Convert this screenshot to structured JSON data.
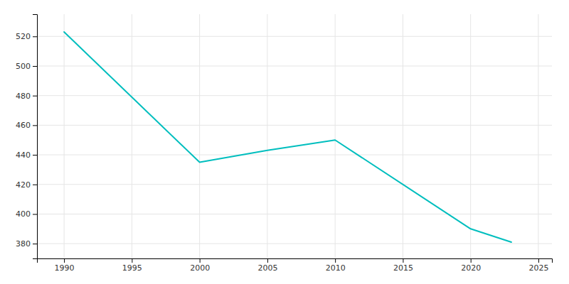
{
  "chart_data": {
    "type": "line",
    "x": [
      1990,
      2000,
      2005,
      2010,
      2020,
      2022,
      2023
    ],
    "values": [
      523,
      435,
      443,
      450,
      390,
      384,
      381
    ],
    "color": "#00BEBE",
    "xlim": [
      1988,
      2026
    ],
    "xticks": [
      1990,
      1995,
      2000,
      2005,
      2010,
      2015,
      2020,
      2025
    ],
    "ylim": [
      370,
      535
    ],
    "yticks": [
      380,
      400,
      420,
      440,
      460,
      480,
      500,
      520
    ],
    "grid": true
  }
}
